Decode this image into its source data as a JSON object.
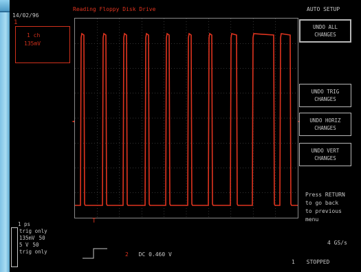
{
  "header": {
    "date": "14/02/96",
    "title": "Reading Floppy Disk Drive",
    "menu_title": "AUTO SETUP"
  },
  "channel_box": {
    "line1": "1 ch",
    "line2": "135mV"
  },
  "channel_marker": "1",
  "softkeys": [
    {
      "line1": "UNDO ALL",
      "line2": "CHANGES"
    },
    {
      "line1": "UNDO TRIG",
      "line2": "CHANGES"
    },
    {
      "line1": "UNDO HORIZ",
      "line2": "CHANGES"
    },
    {
      "line1": "UNDO VERT",
      "line2": "CHANGES"
    }
  ],
  "help_text": [
    "Press RETURN",
    "to go back",
    "to previous",
    "menu"
  ],
  "sample_rate": "4 GS/s",
  "status": {
    "channel": "1",
    "state": "STOPPED"
  },
  "trigger_info": {
    "label": "1 ps",
    "rows": [
      [
        "trig only",
        ""
      ],
      [
        "135mV",
        "50"
      ],
      [
        "5 V",
        "50"
      ],
      [
        "trig only",
        ""
      ]
    ]
  },
  "coupling": {
    "channel": "2",
    "text": "DC 0.460 V"
  },
  "markers": {
    "trigger": "T",
    "left_arrow": "◄",
    "right_arrow": "◄"
  },
  "colors": {
    "trace": "#e0341f",
    "text": "#c8c8c8",
    "grid": "#6a6a6a"
  }
}
